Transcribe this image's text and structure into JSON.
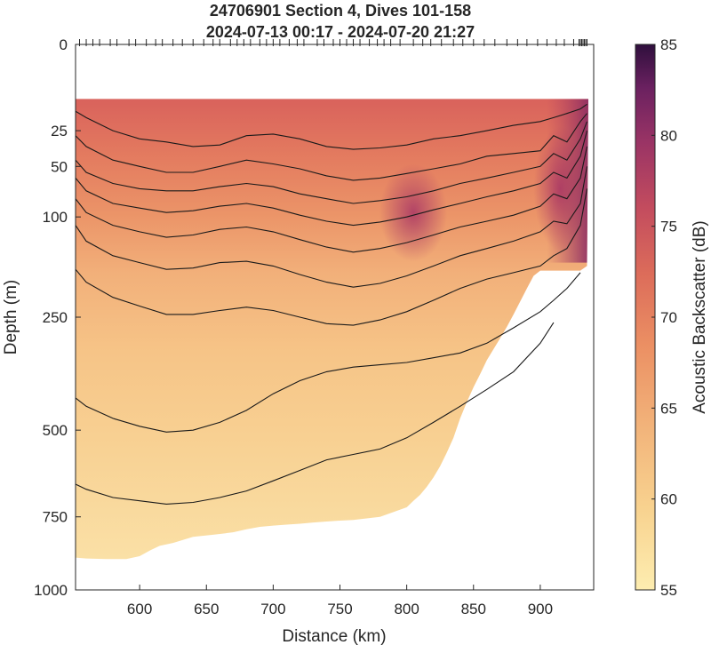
{
  "chart_data": {
    "type": "heatmap",
    "title": [
      "24706901 Section 4, Dives 101-158",
      "2024-07-13 00:17 - 2024-07-20 21:27"
    ],
    "xlabel": "Distance (km)",
    "ylabel": "Depth (m)",
    "colorbar_label": "Acoustic Backscatter (dB)",
    "xlim": [
      552,
      940
    ],
    "x_ticks": [
      600,
      650,
      700,
      750,
      800,
      850,
      900
    ],
    "y_ticks": [
      0,
      25,
      50,
      100,
      250,
      500,
      750,
      1000
    ],
    "y_scale": "square-root (depth)",
    "ylim": [
      0,
      1000
    ],
    "color_scale": {
      "min": 55,
      "max": 85,
      "ticks": [
        55,
        60,
        65,
        70,
        75,
        80,
        85
      ],
      "colormap": "matter"
    },
    "data_top_depth": 10,
    "dive_positions_km": [
      555,
      560,
      565,
      570,
      578,
      583,
      592,
      597,
      605,
      612,
      617,
      625,
      632,
      640,
      648,
      655,
      660,
      668,
      673,
      678,
      683,
      690,
      695,
      700,
      705,
      712,
      718,
      723,
      733,
      738,
      745,
      750,
      755,
      760,
      765,
      772,
      778,
      783,
      788,
      795,
      805,
      812,
      818,
      826,
      835,
      842,
      850,
      858,
      866,
      875,
      883,
      890,
      898,
      905,
      912,
      918,
      925,
      929,
      930,
      931,
      932,
      933,
      934,
      935
    ],
    "bottom_depth": {
      "x": [
        552,
        560,
        575,
        590,
        600,
        608,
        615,
        625,
        640,
        655,
        670,
        680,
        690,
        700,
        710,
        720,
        730,
        740,
        750,
        760,
        770,
        780,
        790,
        800,
        805,
        810,
        815,
        820,
        825,
        830,
        835,
        840,
        845,
        850,
        855,
        860,
        865,
        870,
        875,
        880,
        885,
        890,
        895,
        900,
        905,
        910,
        915,
        920,
        925,
        930,
        935,
        940
      ],
      "depth": [
        885,
        888,
        890,
        890,
        880,
        860,
        845,
        835,
        815,
        808,
        800,
        790,
        782,
        778,
        775,
        772,
        768,
        765,
        762,
        760,
        755,
        750,
        735,
        720,
        700,
        682,
        658,
        630,
        598,
        560,
        520,
        470,
        430,
        395,
        365,
        335,
        312,
        290,
        268,
        245,
        222,
        200,
        180,
        172,
        172,
        172,
        172,
        172,
        172,
        172,
        165,
        0
      ]
    },
    "contours": [
      {
        "x": [
          552,
          560,
          580,
          600,
          620,
          640,
          660,
          680,
          700,
          720,
          740,
          760,
          780,
          800,
          820,
          840,
          860,
          880,
          900,
          910,
          920,
          930,
          935
        ],
        "depth": [
          15,
          18,
          25,
          30,
          32,
          35,
          34,
          28,
          27,
          30,
          35,
          37,
          36,
          34,
          30,
          28,
          25,
          22,
          20,
          18,
          16,
          14,
          12
        ]
      },
      {
        "x": [
          552,
          560,
          580,
          600,
          620,
          640,
          660,
          680,
          700,
          720,
          740,
          760,
          780,
          800,
          820,
          840,
          860,
          880,
          900,
          910,
          920,
          930,
          935
        ],
        "depth": [
          28,
          35,
          45,
          50,
          55,
          55,
          50,
          45,
          48,
          52,
          58,
          62,
          60,
          56,
          52,
          48,
          42,
          40,
          38,
          28,
          32,
          20,
          16
        ]
      },
      {
        "x": [
          552,
          560,
          580,
          600,
          620,
          640,
          660,
          680,
          700,
          720,
          740,
          760,
          780,
          800,
          820,
          840,
          860,
          880,
          900,
          910,
          920,
          930,
          935
        ],
        "depth": [
          45,
          55,
          65,
          70,
          72,
          72,
          68,
          65,
          68,
          75,
          80,
          85,
          82,
          78,
          72,
          65,
          60,
          55,
          50,
          40,
          45,
          30,
          20
        ]
      },
      {
        "x": [
          552,
          560,
          580,
          600,
          620,
          640,
          660,
          680,
          700,
          720,
          740,
          760,
          780,
          800,
          820,
          840,
          860,
          880,
          900,
          910,
          920,
          930,
          935
        ],
        "depth": [
          60,
          72,
          85,
          90,
          95,
          93,
          88,
          85,
          90,
          98,
          105,
          110,
          106,
          100,
          92,
          85,
          78,
          72,
          65,
          55,
          60,
          42,
          25
        ]
      },
      {
        "x": [
          552,
          560,
          580,
          600,
          620,
          640,
          660,
          680,
          700,
          720,
          740,
          760,
          780,
          800,
          820,
          840,
          860,
          880,
          900,
          910,
          920,
          930,
          935
        ],
        "depth": [
          80,
          95,
          110,
          118,
          125,
          122,
          115,
          112,
          118,
          128,
          138,
          145,
          140,
          132,
          122,
          112,
          105,
          98,
          88,
          75,
          80,
          60,
          35
        ]
      },
      {
        "x": [
          552,
          560,
          580,
          600,
          620,
          640,
          660,
          680,
          700,
          720,
          740,
          760,
          780,
          800,
          820,
          840,
          860,
          880,
          900,
          910,
          920,
          930,
          935
        ],
        "depth": [
          110,
          130,
          150,
          160,
          170,
          168,
          160,
          158,
          165,
          178,
          190,
          198,
          192,
          180,
          165,
          150,
          140,
          130,
          118,
          105,
          108,
          85,
          50
        ]
      },
      {
        "x": [
          552,
          560,
          580,
          600,
          620,
          640,
          660,
          680,
          700,
          720,
          740,
          760,
          780,
          800,
          820,
          840,
          860,
          880,
          900,
          910,
          920,
          930,
          935
        ],
        "depth": [
          170,
          190,
          215,
          230,
          245,
          245,
          238,
          232,
          238,
          250,
          262,
          265,
          255,
          240,
          220,
          200,
          185,
          175,
          165,
          150,
          140,
          110,
          70
        ]
      },
      {
        "x": [
          552,
          560,
          580,
          600,
          620,
          640,
          660,
          680,
          700,
          720,
          740,
          760,
          780,
          800,
          820,
          840,
          860,
          880,
          900,
          910,
          920,
          930
        ],
        "depth": [
          420,
          440,
          470,
          490,
          505,
          500,
          480,
          450,
          410,
          380,
          360,
          350,
          345,
          340,
          330,
          320,
          300,
          270,
          240,
          220,
          200,
          175
        ]
      },
      {
        "x": [
          552,
          560,
          580,
          600,
          620,
          640,
          660,
          680,
          700,
          720,
          740,
          760,
          780,
          800,
          820,
          840,
          860,
          880,
          900,
          910
        ],
        "depth": [
          650,
          665,
          690,
          700,
          710,
          705,
          690,
          670,
          640,
          610,
          580,
          565,
          550,
          520,
          480,
          440,
          400,
          360,
          300,
          260
        ]
      }
    ]
  }
}
